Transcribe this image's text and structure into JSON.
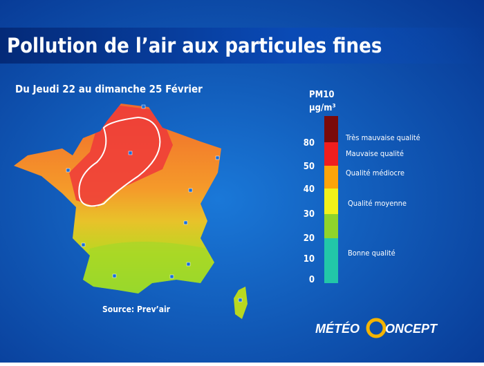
{
  "header": {
    "title": "Pollution de l’air aux particules fines",
    "period": "Du Jeudi 22 au dimanche  25 Février"
  },
  "legend": {
    "title": "PM10",
    "unit": "µg/m³",
    "ticks": [
      0,
      10,
      20,
      30,
      40,
      50,
      80
    ],
    "bands": [
      {
        "label": "Bonne qualité",
        "color": "#22c7a8"
      },
      {
        "label": "Qualité  moyenne",
        "color": "#f2f21a"
      },
      {
        "label": "Qualité  médiocre",
        "color": "#fda40a"
      },
      {
        "label": "Mauvaise qualité",
        "color": "#f01e1e"
      },
      {
        "label": "Très mauvaise qualité",
        "color": "#7a0a0a"
      }
    ]
  },
  "source": "Source:  Prev’air",
  "logo": {
    "left": "MÉTÉO",
    "right": "ONCEPT"
  }
}
